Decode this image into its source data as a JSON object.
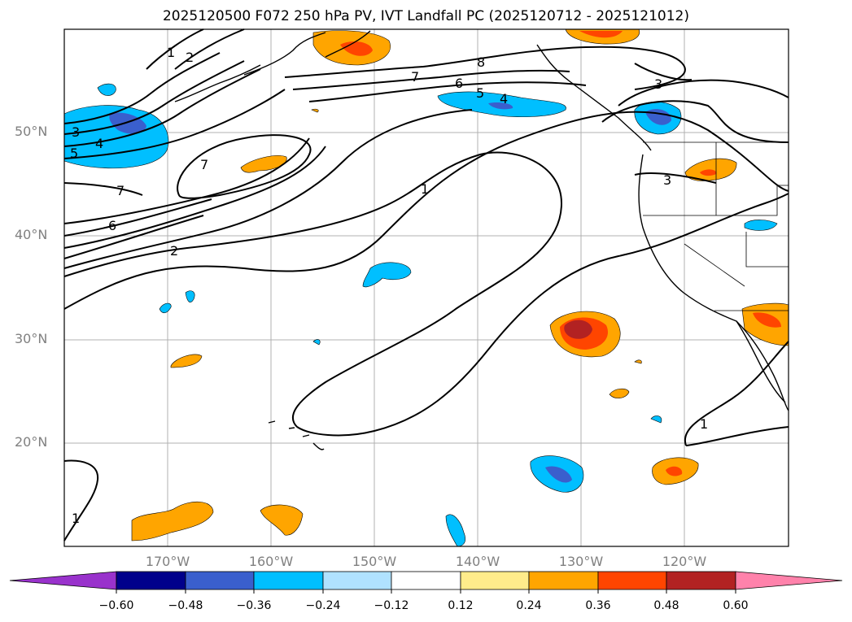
{
  "title": "2025120500 F072 250 hPa PV, IVT Landfall PC (2025120712 - 2025121012)",
  "lat_labels": [
    "50°N",
    "40°N",
    "30°N",
    "20°N"
  ],
  "lon_labels": [
    "170°W",
    "160°W",
    "150°W",
    "140°W",
    "130°W",
    "120°W"
  ],
  "colorbar": {
    "tick_labels": [
      "−0.60",
      "−0.48",
      "−0.36",
      "−0.24",
      "−0.12",
      "0.12",
      "0.24",
      "0.36",
      "0.48",
      "0.60"
    ],
    "colors": [
      "#9932cc",
      "#00008b",
      "#3a5fcd",
      "#00bfff",
      "#b0e2ff",
      "#ffffff",
      "#ffec8b",
      "#ffa500",
      "#ff4500",
      "#b22222",
      "#ff82ab"
    ]
  },
  "contour_labels": [
    "1",
    "2",
    "3",
    "4",
    "5",
    "7",
    "6",
    "2",
    "7",
    "6",
    "5",
    "4",
    "8",
    "7",
    "3",
    "3",
    "1",
    "1",
    "1"
  ],
  "colors": {
    "grid": "#b0b0b0",
    "contour": "#000000",
    "coast": "#000000"
  }
}
